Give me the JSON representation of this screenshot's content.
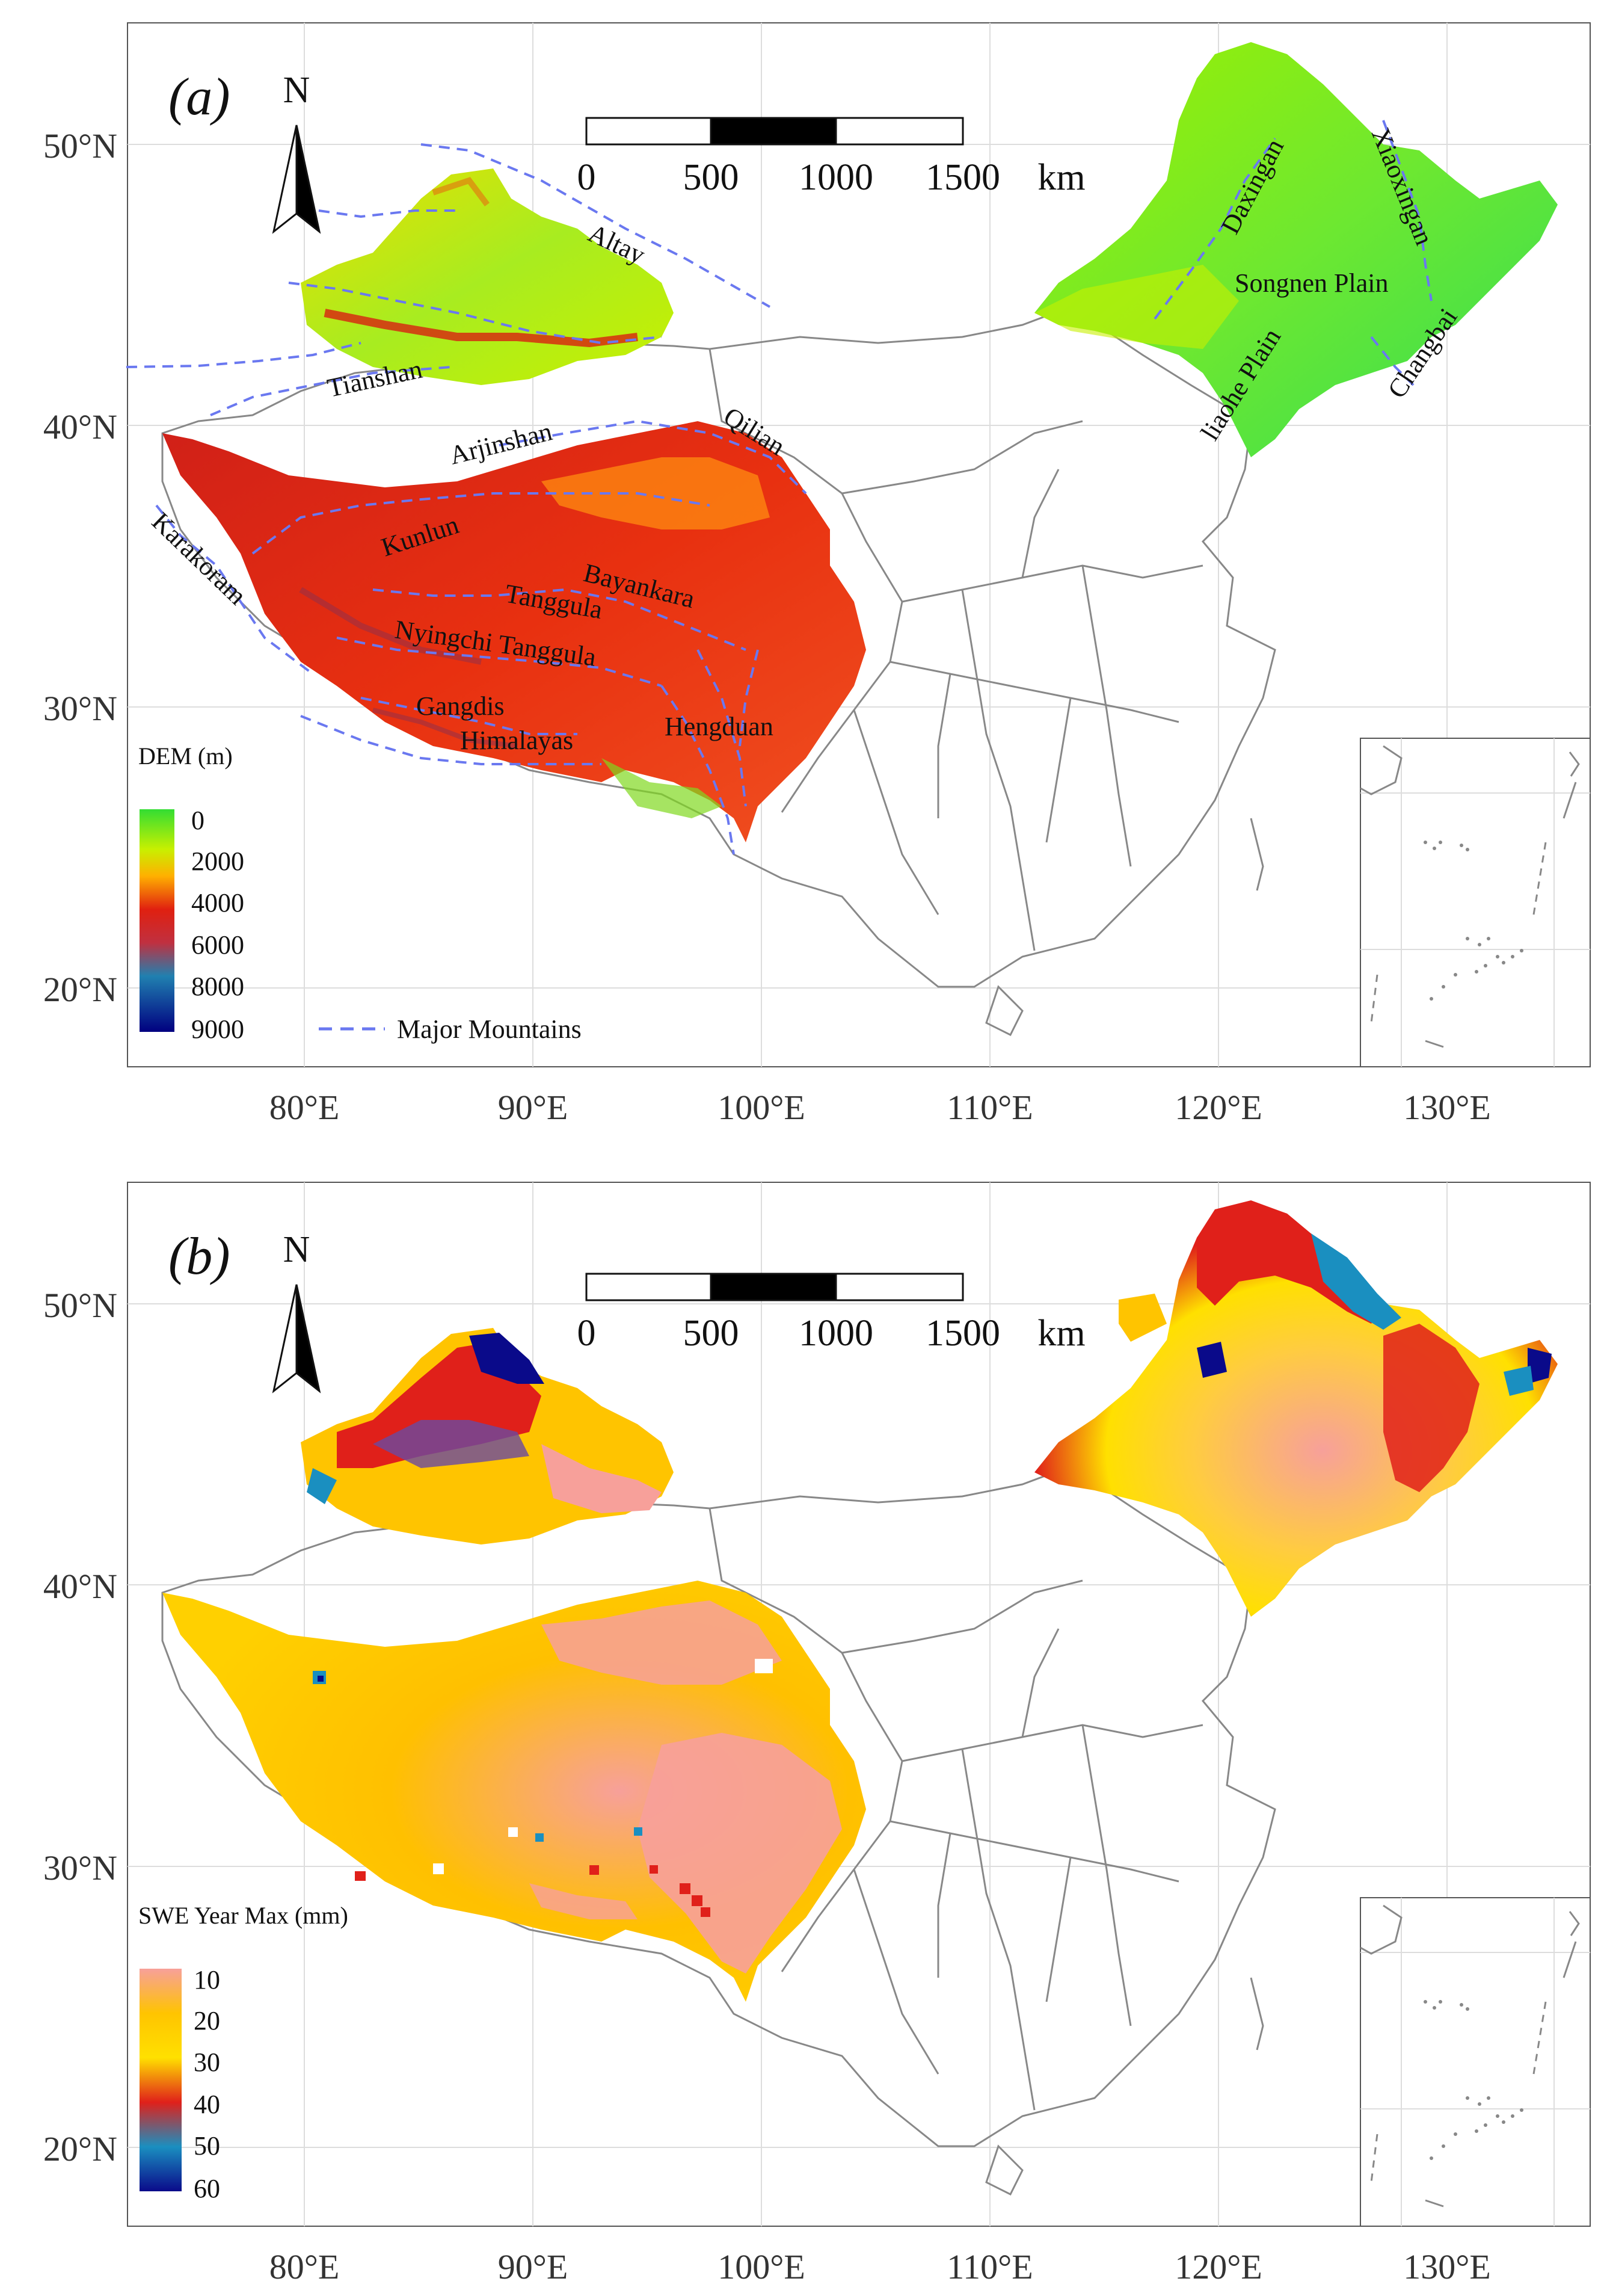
{
  "colors": {
    "dem_low": "#33dd33",
    "dem_mid": "#f0e000",
    "dem_high": "#e22010",
    "dem_max": "#000080",
    "swe_10": "#f7a09a",
    "swe_20": "#ffc400",
    "swe_30": "#ffe000",
    "swe_40": "#e0201a",
    "swe_50": "#1a8fc0",
    "swe_60": "#0a0a8a",
    "mountain_line": "#6a78f0",
    "border": "#888888",
    "grid": "#dddddd"
  },
  "panel_a": {
    "label": "(a)",
    "north_label": "N",
    "scale_bar": {
      "ticks": [
        "0",
        "500",
        "1000",
        "1500"
      ],
      "unit": "km"
    },
    "lat_labels": [
      "50°N",
      "40°N",
      "30°N",
      "20°N"
    ],
    "lon_labels": [
      "80°E",
      "90°E",
      "100°E",
      "110°E",
      "120°E",
      "130°E"
    ],
    "legend": {
      "title": "DEM (m)",
      "ticks": [
        "0",
        "2000",
        "4000",
        "6000",
        "8000",
        "9000"
      ],
      "mountain_legend": "Major Mountains"
    },
    "mountains": {
      "altay": "Altay",
      "tianshan": "Tianshan",
      "arjinshan": "Arjinshan",
      "qilian": "Qilian",
      "kunlun": "Kunlun",
      "karakoram": "Karakoram",
      "bayankara": "Bayankara",
      "tanggula": "Tanggula",
      "nyingchi_tanggula": "Nyingchi Tanggula",
      "gangdis": "Gangdis",
      "himalayas": "Himalayas",
      "hengduan": "Hengduan",
      "daxingan": "Daxingan",
      "xiaoxingan": "Xiaoxingan",
      "songnen_plain": "Songnen Plain",
      "liaohe_plain": "liaohe Plain",
      "changbai": "Changbai"
    }
  },
  "panel_b": {
    "label": "(b)",
    "north_label": "N",
    "scale_bar": {
      "ticks": [
        "0",
        "500",
        "1000",
        "1500"
      ],
      "unit": "km"
    },
    "lat_labels": [
      "50°N",
      "40°N",
      "30°N",
      "20°N"
    ],
    "lon_labels": [
      "80°E",
      "90°E",
      "100°E",
      "110°E",
      "120°E",
      "130°E"
    ],
    "legend": {
      "title": "SWE  Year  Max (mm)",
      "ticks": [
        "10",
        "20",
        "30",
        "40",
        "50",
        "60"
      ]
    }
  }
}
